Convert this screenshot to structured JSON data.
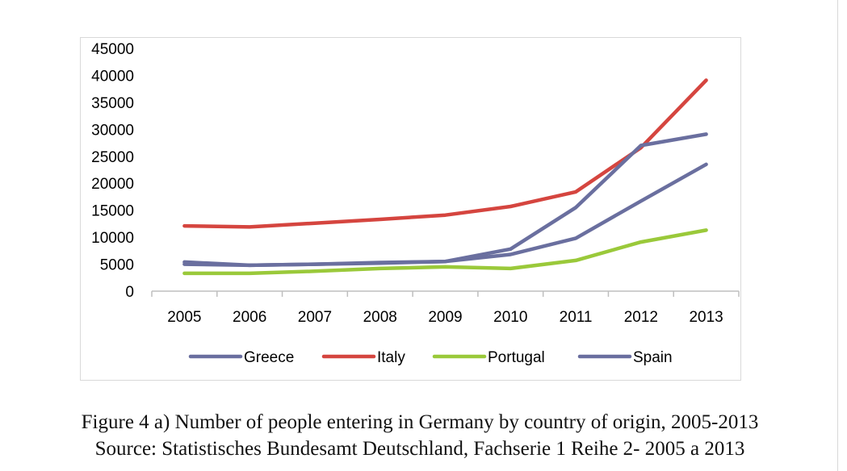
{
  "chart_data": {
    "type": "line",
    "title": "",
    "xlabel": "",
    "ylabel": "",
    "categories": [
      "2005",
      "2006",
      "2007",
      "2008",
      "2009",
      "2010",
      "2011",
      "2012",
      "2013"
    ],
    "y_ticks": [
      "0",
      "5000",
      "10000",
      "15000",
      "20000",
      "25000",
      "30000",
      "35000",
      "40000",
      "45000"
    ],
    "ylim": [
      0,
      45000
    ],
    "grid": false,
    "legend_position": "bottom",
    "series": [
      {
        "name": "Greece",
        "color": "#6a6f9f",
        "values": [
          5400,
          4800,
          5000,
          5200,
          5500,
          6800,
          9800,
          16700,
          23500
        ]
      },
      {
        "name": "Italy",
        "color": "#d5453f",
        "values": [
          12100,
          11900,
          12600,
          13300,
          14100,
          15700,
          18400,
          26600,
          39100
        ]
      },
      {
        "name": "Portugal",
        "color": "#9ac93a",
        "values": [
          3300,
          3300,
          3700,
          4200,
          4500,
          4200,
          5700,
          9100,
          11300
        ]
      },
      {
        "name": "Spain",
        "color": "#6a6f9f",
        "values": [
          5000,
          4800,
          5000,
          5300,
          5500,
          7800,
          15500,
          27000,
          29100
        ]
      }
    ]
  },
  "caption": {
    "line1": "Figure 4 a) Number of people entering in Germany by country of origin, 2005-2013",
    "line2": "Source: Statistisches Bundesamt Deutschland, Fachserie 1 Reihe 2- 2005 a 2013"
  }
}
